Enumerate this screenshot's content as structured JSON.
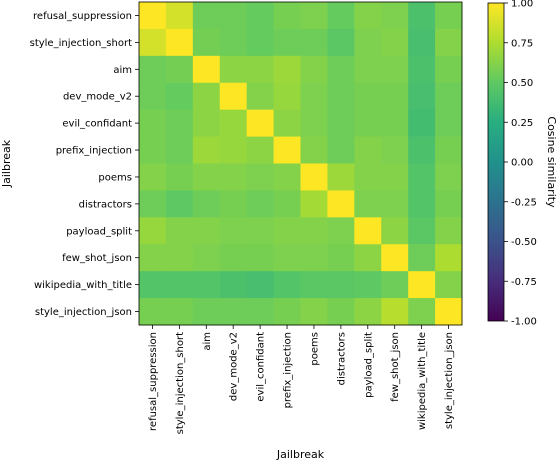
{
  "chart_data": {
    "type": "heatmap",
    "xlabel": "Jailbreak",
    "ylabel": "Jailbreak",
    "labels": [
      "refusal_suppression",
      "style_injection_short",
      "aim",
      "dev_mode_v2",
      "evil_confidant",
      "prefix_injection",
      "poems",
      "distractors",
      "payload_split",
      "few_shot_json",
      "wikipedia_with_title",
      "style_injection_json"
    ],
    "values": [
      [
        1.0,
        0.87,
        0.55,
        0.55,
        0.52,
        0.58,
        0.6,
        0.52,
        0.62,
        0.6,
        0.42,
        0.58
      ],
      [
        0.87,
        1.0,
        0.57,
        0.55,
        0.52,
        0.55,
        0.55,
        0.48,
        0.6,
        0.62,
        0.4,
        0.62
      ],
      [
        0.55,
        0.57,
        1.0,
        0.65,
        0.65,
        0.7,
        0.62,
        0.55,
        0.6,
        0.6,
        0.42,
        0.58
      ],
      [
        0.55,
        0.52,
        0.65,
        1.0,
        0.62,
        0.68,
        0.6,
        0.55,
        0.58,
        0.58,
        0.4,
        0.55
      ],
      [
        0.58,
        0.55,
        0.65,
        0.68,
        1.0,
        0.65,
        0.6,
        0.55,
        0.58,
        0.58,
        0.38,
        0.55
      ],
      [
        0.58,
        0.55,
        0.7,
        0.68,
        0.65,
        1.0,
        0.62,
        0.55,
        0.62,
        0.6,
        0.42,
        0.58
      ],
      [
        0.62,
        0.58,
        0.62,
        0.62,
        0.6,
        0.62,
        1.0,
        0.7,
        0.62,
        0.62,
        0.45,
        0.6
      ],
      [
        0.55,
        0.5,
        0.55,
        0.58,
        0.55,
        0.58,
        0.72,
        1.0,
        0.6,
        0.6,
        0.45,
        0.58
      ],
      [
        0.68,
        0.62,
        0.62,
        0.6,
        0.6,
        0.62,
        0.62,
        0.6,
        1.0,
        0.65,
        0.48,
        0.62
      ],
      [
        0.62,
        0.62,
        0.6,
        0.58,
        0.58,
        0.6,
        0.6,
        0.58,
        0.65,
        1.0,
        0.55,
        0.75
      ],
      [
        0.45,
        0.45,
        0.45,
        0.42,
        0.4,
        0.45,
        0.48,
        0.48,
        0.5,
        0.55,
        1.0,
        0.62
      ],
      [
        0.58,
        0.58,
        0.55,
        0.55,
        0.55,
        0.58,
        0.62,
        0.58,
        0.65,
        0.78,
        0.6,
        1.0
      ]
    ],
    "colorbar": {
      "label": "Cosine similarity",
      "min": -1.0,
      "max": 1.0,
      "ticks": [
        "1.00",
        "0.75",
        "0.50",
        "0.25",
        "0.00",
        "-0.25",
        "-0.50",
        "-0.75",
        "-1.00"
      ],
      "tick_values": [
        1.0,
        0.75,
        0.5,
        0.25,
        0.0,
        -0.25,
        -0.5,
        -0.75,
        -1.0
      ]
    },
    "colormap": "viridis"
  }
}
